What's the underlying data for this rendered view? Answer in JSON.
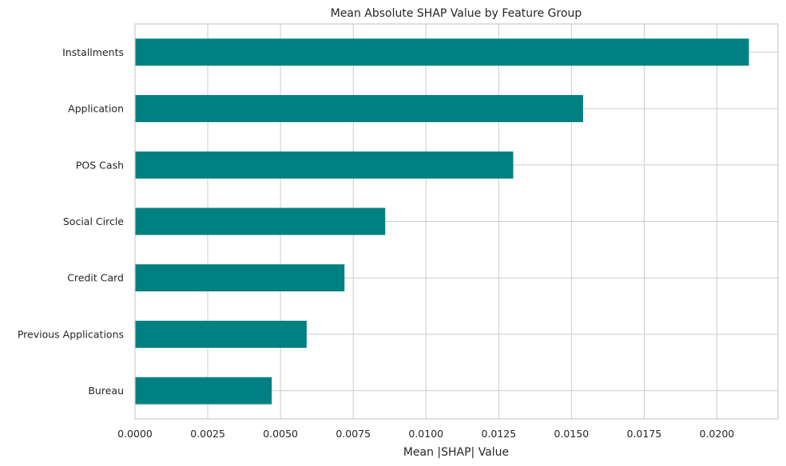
{
  "chart_data": {
    "type": "bar",
    "orientation": "horizontal",
    "title": "Mean Absolute SHAP Value by Feature Group",
    "xlabel": "Mean |SHAP| Value",
    "ylabel": "",
    "categories": [
      "Installments",
      "Application",
      "POS Cash",
      "Social Circle",
      "Credit Card",
      "Previous Applications",
      "Bureau"
    ],
    "values": [
      0.0211,
      0.0154,
      0.013,
      0.0086,
      0.0072,
      0.0059,
      0.0047
    ],
    "xlim": [
      0,
      0.0221
    ],
    "x_ticks": [
      0,
      0.0025,
      0.005,
      0.0075,
      0.01,
      0.0125,
      0.015,
      0.0175,
      0.02
    ],
    "x_tick_labels": [
      "0.0000",
      "0.0025",
      "0.0050",
      "0.0075",
      "0.0100",
      "0.0125",
      "0.0150",
      "0.0175",
      "0.0200"
    ],
    "bar_color": "#008080",
    "grid": true,
    "legend": "none"
  }
}
